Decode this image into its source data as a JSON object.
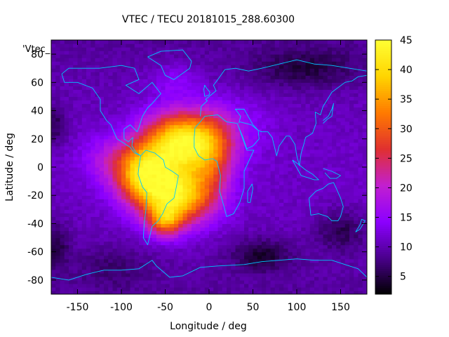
{
  "chart_data": {
    "type": "heatmap",
    "title": "VTEC / TECU 20181015_288.60300",
    "xlabel": "Longitude / deg",
    "ylabel": "Latitude / deg",
    "key_label": "'Vtec_",
    "xlim": [
      -180,
      180
    ],
    "ylim": [
      -90,
      90
    ],
    "xticks": [
      -150,
      -100,
      -50,
      0,
      50,
      100,
      150
    ],
    "yticks": [
      -80,
      -60,
      -40,
      -20,
      0,
      20,
      40,
      60,
      80
    ],
    "colorbar": {
      "range": [
        2,
        45
      ],
      "ticks": [
        5,
        10,
        15,
        20,
        25,
        30,
        35,
        40,
        45
      ],
      "palette": [
        "#000000",
        "#4a008c",
        "#8c00ff",
        "#c21fd0",
        "#e03030",
        "#ff7a00",
        "#ffd400",
        "#ffff33"
      ]
    },
    "field": {
      "background_tecu": 9,
      "blobs": [
        {
          "lon": -30,
          "lat": 18,
          "slon": 30,
          "slat": 15,
          "amp": 32
        },
        {
          "lon": -75,
          "lat": -5,
          "slon": 22,
          "slat": 15,
          "amp": 26
        },
        {
          "lon": -35,
          "lat": -20,
          "slon": 28,
          "slat": 14,
          "amp": 28
        },
        {
          "lon": -50,
          "lat": -38,
          "slon": 14,
          "slat": 8,
          "amp": 16
        },
        {
          "lon": 5,
          "lat": 8,
          "slon": 18,
          "slat": 20,
          "amp": 10
        },
        {
          "lon": -115,
          "lat": 5,
          "slon": 22,
          "slat": 12,
          "amp": 6
        },
        {
          "lon": 40,
          "lat": 30,
          "slon": 25,
          "slat": 15,
          "amp": 3
        },
        {
          "lon": -40,
          "lat": 62,
          "slon": 20,
          "slat": 8,
          "amp": 4
        }
      ],
      "dips": [
        {
          "lon": 110,
          "lat": 70,
          "slon": 45,
          "slat": 10,
          "amp": 5
        },
        {
          "lon": 60,
          "lat": -62,
          "slon": 25,
          "slat": 8,
          "amp": 6
        },
        {
          "lon": 150,
          "lat": -45,
          "slon": 20,
          "slat": 10,
          "amp": 5
        },
        {
          "lon": -175,
          "lat": -55,
          "slon": 12,
          "slat": 12,
          "amp": 5
        },
        {
          "lon": -175,
          "lat": 30,
          "slon": 10,
          "slat": 10,
          "amp": 5
        },
        {
          "lon": -110,
          "lat": -70,
          "slon": 30,
          "slat": 10,
          "amp": 3
        }
      ]
    },
    "coastlines": [
      {
        "name": "north-america",
        "points": [
          [
            -168,
            66
          ],
          [
            -160,
            70
          ],
          [
            -140,
            70
          ],
          [
            -125,
            70
          ],
          [
            -100,
            72
          ],
          [
            -85,
            70
          ],
          [
            -80,
            62
          ],
          [
            -95,
            58
          ],
          [
            -80,
            52
          ],
          [
            -65,
            60
          ],
          [
            -55,
            52
          ],
          [
            -65,
            45
          ],
          [
            -70,
            42
          ],
          [
            -76,
            36
          ],
          [
            -80,
            28
          ],
          [
            -82,
            25
          ],
          [
            -90,
            30
          ],
          [
            -97,
            27
          ],
          [
            -97,
            20
          ],
          [
            -92,
            18
          ],
          [
            -87,
            21
          ],
          [
            -88,
            15
          ],
          [
            -83,
            10
          ],
          [
            -78,
            8
          ],
          [
            -85,
            10
          ],
          [
            -90,
            14
          ],
          [
            -105,
            20
          ],
          [
            -112,
            30
          ],
          [
            -117,
            33
          ],
          [
            -124,
            40
          ],
          [
            -124,
            48
          ],
          [
            -133,
            56
          ],
          [
            -150,
            60
          ],
          [
            -165,
            60
          ],
          [
            -168,
            66
          ]
        ]
      },
      {
        "name": "south-america",
        "points": [
          [
            -78,
            8
          ],
          [
            -72,
            12
          ],
          [
            -62,
            10
          ],
          [
            -52,
            5
          ],
          [
            -50,
            0
          ],
          [
            -42,
            -3
          ],
          [
            -35,
            -6
          ],
          [
            -37,
            -13
          ],
          [
            -40,
            -22
          ],
          [
            -48,
            -26
          ],
          [
            -53,
            -33
          ],
          [
            -58,
            -38
          ],
          [
            -65,
            -42
          ],
          [
            -68,
            -50
          ],
          [
            -70,
            -55
          ],
          [
            -75,
            -50
          ],
          [
            -74,
            -40
          ],
          [
            -72,
            -30
          ],
          [
            -71,
            -18
          ],
          [
            -76,
            -14
          ],
          [
            -81,
            -5
          ],
          [
            -80,
            0
          ],
          [
            -78,
            8
          ]
        ]
      },
      {
        "name": "africa",
        "points": [
          [
            -17,
            21
          ],
          [
            -16,
            28
          ],
          [
            -10,
            32
          ],
          [
            -5,
            36
          ],
          [
            10,
            37
          ],
          [
            20,
            32
          ],
          [
            32,
            31
          ],
          [
            34,
            28
          ],
          [
            43,
            12
          ],
          [
            51,
            12
          ],
          [
            40,
            -3
          ],
          [
            40,
            -15
          ],
          [
            35,
            -25
          ],
          [
            28,
            -33
          ],
          [
            20,
            -35
          ],
          [
            17,
            -28
          ],
          [
            12,
            -17
          ],
          [
            13,
            -6
          ],
          [
            9,
            4
          ],
          [
            4,
            6
          ],
          [
            -5,
            5
          ],
          [
            -12,
            8
          ],
          [
            -17,
            14
          ],
          [
            -17,
            21
          ]
        ]
      },
      {
        "name": "eurasia",
        "points": [
          [
            -10,
            36
          ],
          [
            -9,
            43
          ],
          [
            -2,
            47
          ],
          [
            -4,
            48
          ],
          [
            2,
            51
          ],
          [
            8,
            54
          ],
          [
            5,
            58
          ],
          [
            10,
            62
          ],
          [
            18,
            69
          ],
          [
            30,
            70
          ],
          [
            45,
            68
          ],
          [
            60,
            70
          ],
          [
            80,
            73
          ],
          [
            100,
            76
          ],
          [
            120,
            73
          ],
          [
            140,
            72
          ],
          [
            160,
            70
          ],
          [
            180,
            68
          ]
        ]
      },
      {
        "name": "asia-south",
        "points": [
          [
            34,
            31
          ],
          [
            36,
            36
          ],
          [
            30,
            41
          ],
          [
            40,
            41
          ],
          [
            50,
            30
          ],
          [
            56,
            26
          ],
          [
            60,
            25
          ],
          [
            67,
            25
          ],
          [
            72,
            21
          ],
          [
            77,
            8
          ],
          [
            80,
            15
          ],
          [
            88,
            22
          ],
          [
            92,
            22
          ],
          [
            98,
            16
          ],
          [
            100,
            8
          ],
          [
            103,
            1
          ],
          [
            105,
            10
          ],
          [
            108,
            16
          ],
          [
            110,
            21
          ],
          [
            118,
            24
          ],
          [
            122,
            31
          ],
          [
            121,
            39
          ],
          [
            127,
            37
          ],
          [
            130,
            43
          ],
          [
            135,
            48
          ],
          [
            140,
            53
          ],
          [
            155,
            60
          ],
          [
            163,
            61
          ],
          [
            170,
            64
          ],
          [
            180,
            65
          ]
        ]
      },
      {
        "name": "arabia",
        "points": [
          [
            34,
            28
          ],
          [
            38,
            22
          ],
          [
            43,
            13
          ],
          [
            50,
            15
          ],
          [
            57,
            20
          ],
          [
            56,
            26
          ],
          [
            48,
            30
          ],
          [
            35,
            32
          ]
        ]
      },
      {
        "name": "australia",
        "points": [
          [
            114,
            -22
          ],
          [
            116,
            -34
          ],
          [
            125,
            -33
          ],
          [
            135,
            -35
          ],
          [
            140,
            -38
          ],
          [
            147,
            -38
          ],
          [
            150,
            -35
          ],
          [
            153,
            -28
          ],
          [
            150,
            -22
          ],
          [
            145,
            -15
          ],
          [
            142,
            -11
          ],
          [
            136,
            -12
          ],
          [
            130,
            -15
          ],
          [
            122,
            -17
          ],
          [
            114,
            -22
          ]
        ]
      },
      {
        "name": "greenland",
        "points": [
          [
            -70,
            78
          ],
          [
            -55,
            82
          ],
          [
            -30,
            83
          ],
          [
            -20,
            75
          ],
          [
            -22,
            70
          ],
          [
            -40,
            62
          ],
          [
            -50,
            65
          ],
          [
            -55,
            72
          ],
          [
            -70,
            78
          ]
        ]
      },
      {
        "name": "antarctica",
        "points": [
          [
            -180,
            -78
          ],
          [
            -160,
            -80
          ],
          [
            -140,
            -76
          ],
          [
            -120,
            -73
          ],
          [
            -100,
            -73
          ],
          [
            -80,
            -72
          ],
          [
            -65,
            -66
          ],
          [
            -60,
            -70
          ],
          [
            -45,
            -78
          ],
          [
            -30,
            -77
          ],
          [
            -10,
            -71
          ],
          [
            10,
            -70
          ],
          [
            40,
            -69
          ],
          [
            60,
            -67
          ],
          [
            80,
            -66
          ],
          [
            100,
            -65
          ],
          [
            120,
            -66
          ],
          [
            140,
            -66
          ],
          [
            160,
            -70
          ],
          [
            170,
            -72
          ],
          [
            180,
            -78
          ]
        ]
      },
      {
        "name": "uk",
        "points": [
          [
            -5,
            50
          ],
          [
            0,
            51
          ],
          [
            1,
            53
          ],
          [
            -3,
            56
          ],
          [
            -5,
            58
          ],
          [
            -6,
            55
          ],
          [
            -5,
            50
          ]
        ]
      },
      {
        "name": "madagascar",
        "points": [
          [
            44,
            -25
          ],
          [
            47,
            -25
          ],
          [
            50,
            -15
          ],
          [
            49,
            -12
          ],
          [
            44,
            -17
          ],
          [
            44,
            -25
          ]
        ]
      },
      {
        "name": "japan",
        "points": [
          [
            130,
            31
          ],
          [
            135,
            34
          ],
          [
            140,
            36
          ],
          [
            141,
            41
          ],
          [
            142,
            45
          ],
          [
            140,
            41
          ],
          [
            136,
            36
          ],
          [
            130,
            33
          ]
        ]
      },
      {
        "name": "new-zealand",
        "points": [
          [
            167,
            -46
          ],
          [
            172,
            -41
          ],
          [
            174,
            -37
          ],
          [
            178,
            -38
          ],
          [
            172,
            -44
          ],
          [
            167,
            -46
          ]
        ]
      },
      {
        "name": "indonesia",
        "points": [
          [
            95,
            5
          ],
          [
            105,
            -6
          ],
          [
            115,
            -8
          ],
          [
            120,
            -9
          ],
          [
            125,
            -9
          ],
          [
            118,
            -5
          ],
          [
            110,
            -2
          ],
          [
            102,
            2
          ],
          [
            95,
            5
          ]
        ]
      },
      {
        "name": "borneo-newguinea",
        "points": [
          [
            130,
            -1
          ],
          [
            140,
            -3
          ],
          [
            150,
            -6
          ],
          [
            145,
            -8
          ],
          [
            138,
            -8
          ],
          [
            132,
            -4
          ]
        ]
      }
    ]
  }
}
